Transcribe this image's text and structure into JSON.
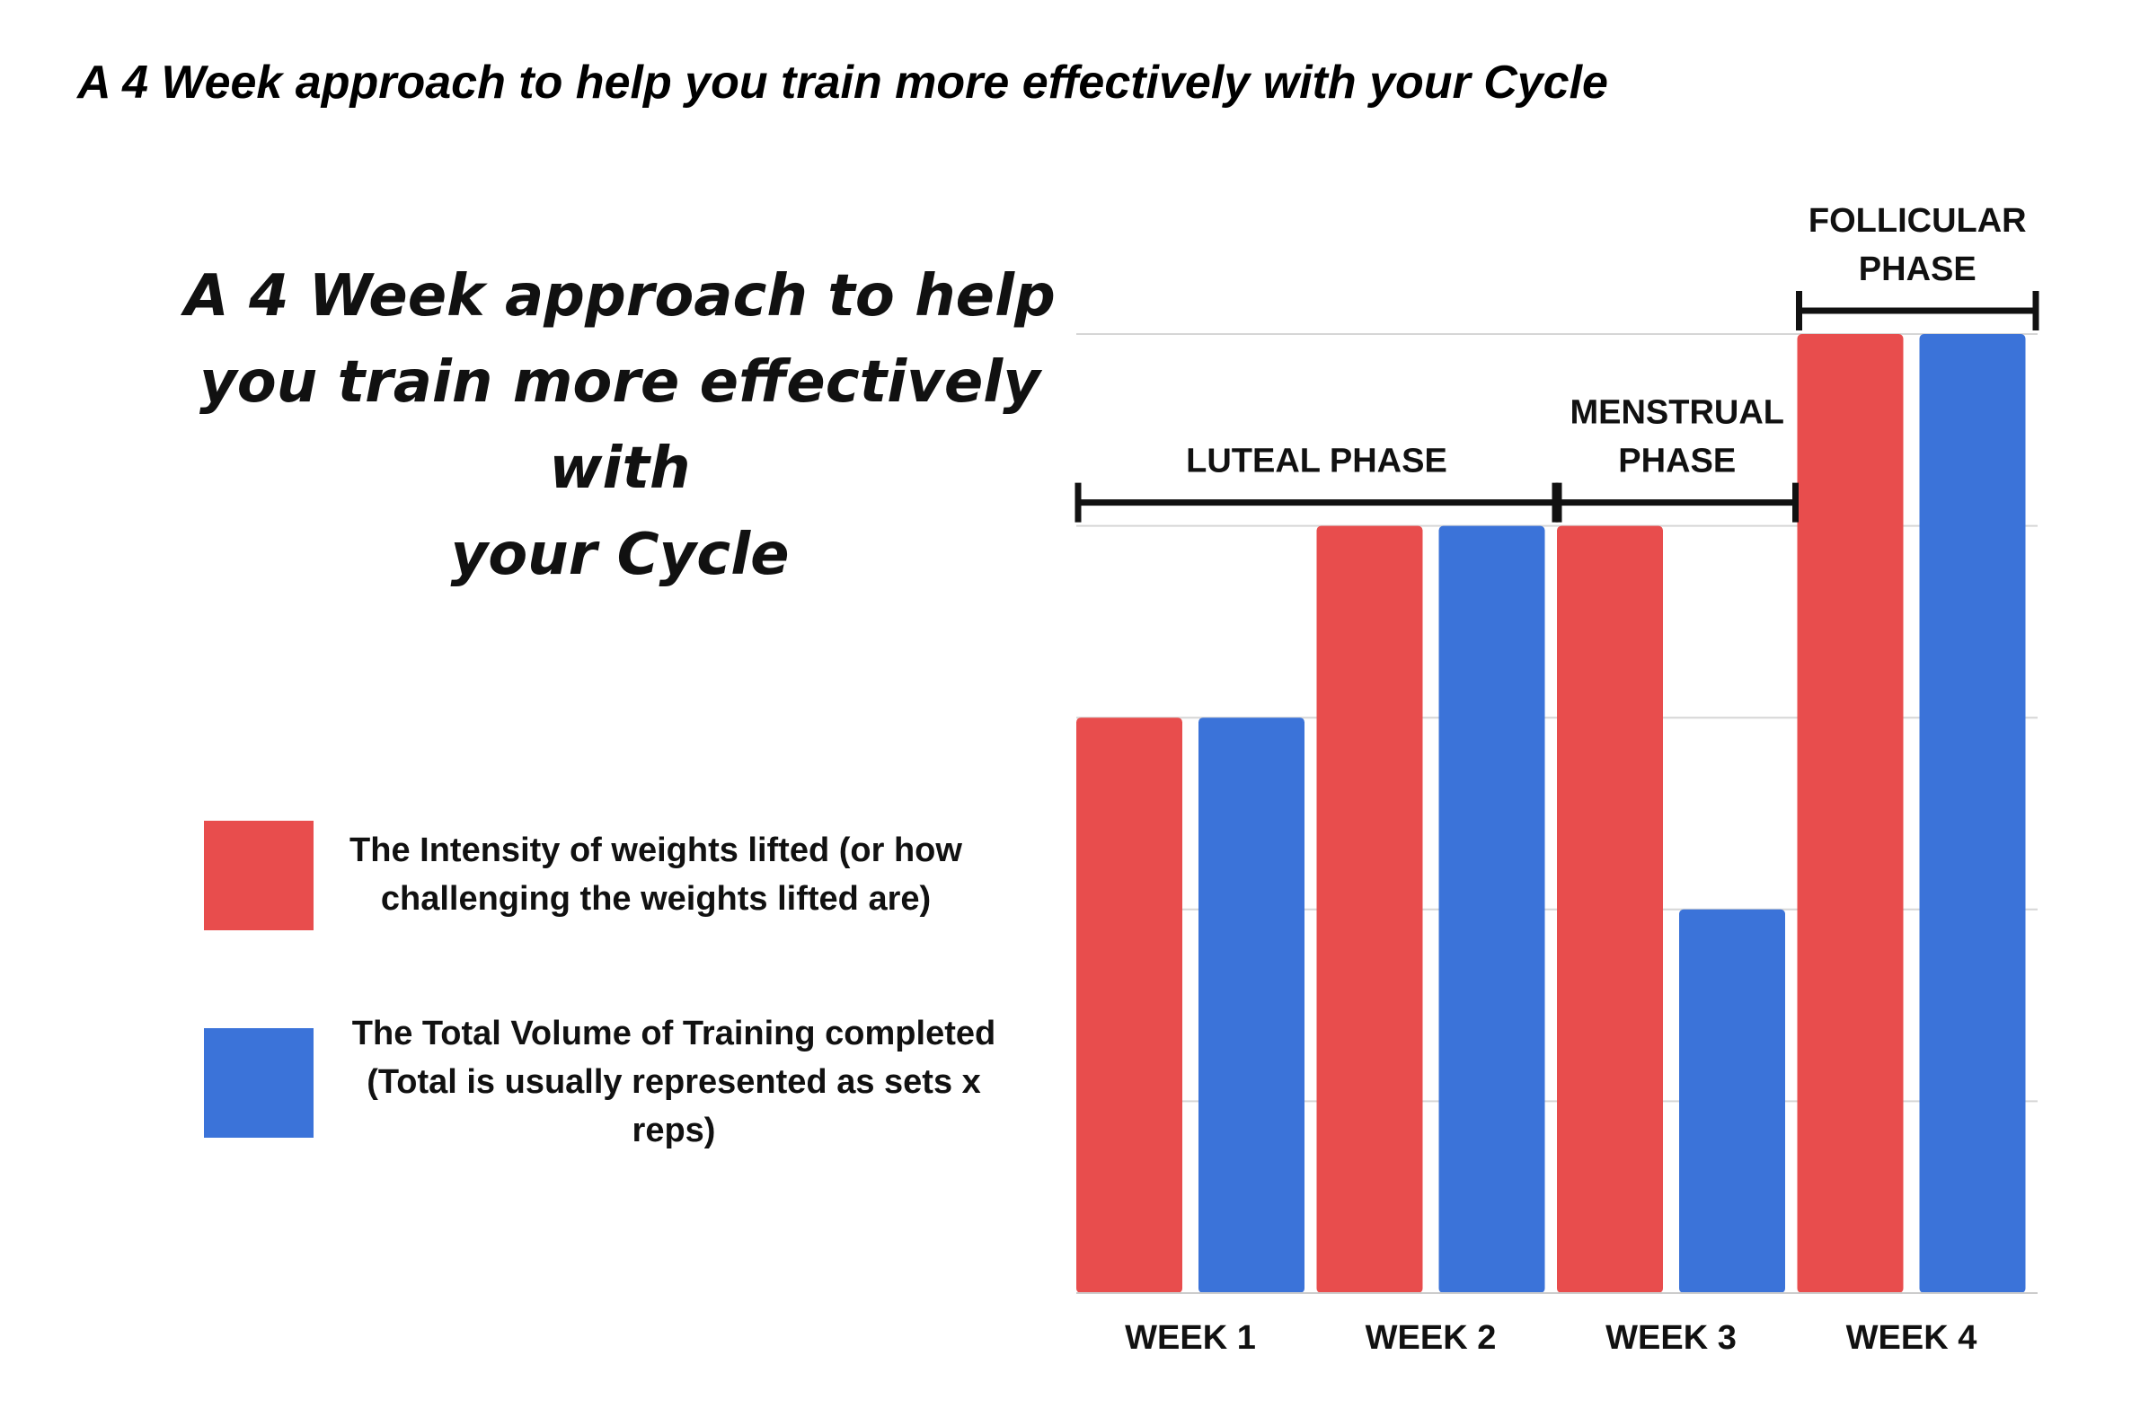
{
  "page_title": "A 4 Week approach to help you train more effectively with your Cycle",
  "chart_data": {
    "type": "bar",
    "title_lines": [
      "A 4 Week approach to help",
      "you train more effectively with",
      "your Cycle"
    ],
    "categories": [
      "WEEK 1",
      "WEEK 2",
      "WEEK 3",
      "WEEK 4"
    ],
    "series": [
      {
        "name": "The Intensity of weights lifted (or how challenging the weights lifted are)",
        "name_lines": [
          "The Intensity of weights lifted (or how",
          "challenging the weights lifted are)"
        ],
        "color": "#e84d4d",
        "values": [
          3,
          4,
          4,
          5
        ]
      },
      {
        "name": "The Total Volume of Training completed (Total is usually represented as sets x reps)",
        "name_lines": [
          "The Total Volume of Training completed",
          "(Total is usually represented as sets x",
          "reps)"
        ],
        "color": "#3b73d9",
        "values": [
          3,
          4,
          2,
          5
        ]
      }
    ],
    "ylim": [
      0,
      5
    ],
    "gridlines": true,
    "y_tick_labels": false,
    "legend_position": "left",
    "phases": [
      {
        "label_lines": [
          "LUTEAL PHASE"
        ],
        "from_category": 0,
        "to_category": 1,
        "level": 4
      },
      {
        "label_lines": [
          "MENSTRUAL",
          "PHASE"
        ],
        "from_category": 2,
        "to_category": 2,
        "level": 4
      },
      {
        "label_lines": [
          "FOLLICULAR",
          "PHASE"
        ],
        "from_category": 3,
        "to_category": 3,
        "level": 5
      }
    ]
  }
}
